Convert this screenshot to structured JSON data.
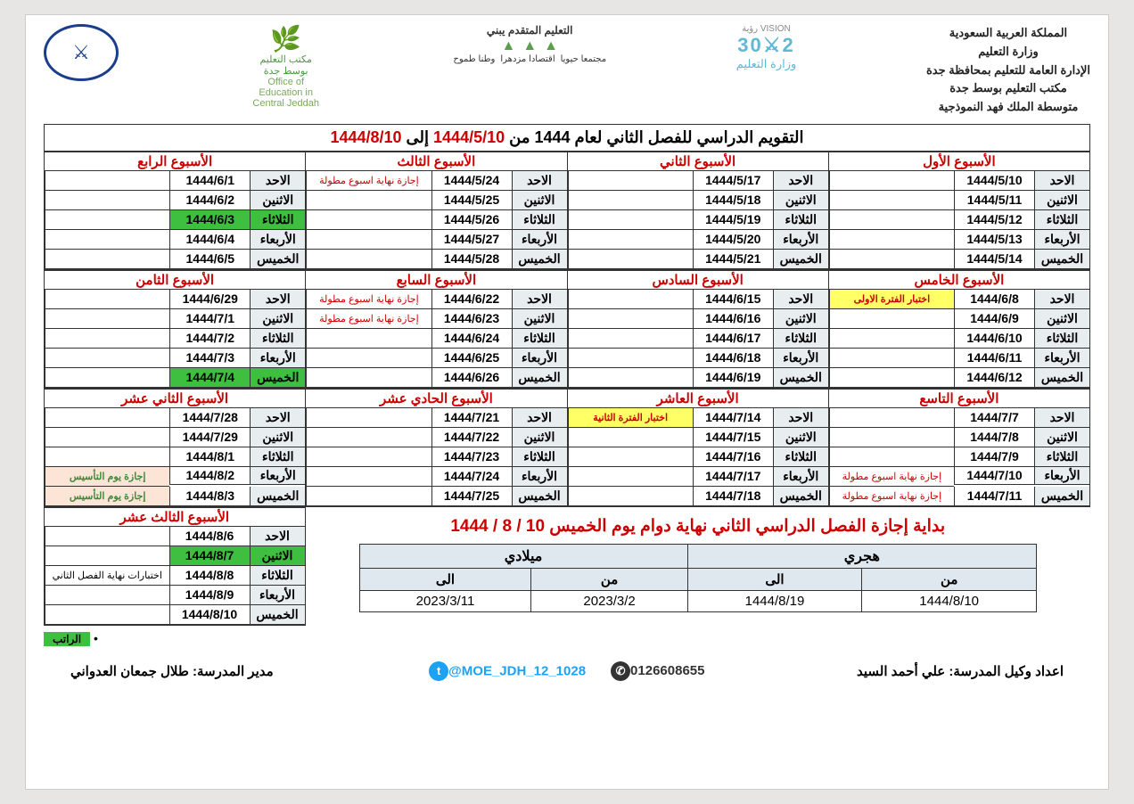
{
  "header": {
    "lines": [
      "المملكة العربية السعودية",
      "وزارة التعليم",
      "الإدارة العامة للتعليم بمحافظة جدة",
      "مكتب التعليم بوسط جدة",
      "متوسطة الملك فهد النموذجية"
    ],
    "office_ar": "مكتب التعليم بوسط جدة",
    "office_en": "Office of Education in Central Jeddah",
    "yabni": "التعليم المتقدم يبني",
    "yabni_items": [
      "مجتمعا حيويا",
      "اقتصادا مزدهرا",
      "وطنا طموح"
    ],
    "vision_top": "VISION رؤية",
    "vision_num": "2⚔30",
    "vision_sub": "وزارة التعليم"
  },
  "title": {
    "prefix": "التقويم الدراسي للفصل الثاني لعام 1444 من ",
    "from": "1444/5/10",
    "mid": " إلى ",
    "to": "1444/8/10"
  },
  "days": [
    "الاحد",
    "الاثنين",
    "الثلاثاء",
    "الأربعاء",
    "الخميس"
  ],
  "weeks": [
    {
      "title": "الأسبوع الأول",
      "rows": [
        {
          "date": "1444/5/10",
          "note": ""
        },
        {
          "date": "1444/5/11",
          "note": ""
        },
        {
          "date": "1444/5/12",
          "note": ""
        },
        {
          "date": "1444/5/13",
          "note": ""
        },
        {
          "date": "1444/5/14",
          "note": ""
        }
      ]
    },
    {
      "title": "الأسبوع الثاني",
      "rows": [
        {
          "date": "1444/5/17",
          "note": ""
        },
        {
          "date": "1444/5/18",
          "note": ""
        },
        {
          "date": "1444/5/19",
          "note": ""
        },
        {
          "date": "1444/5/20",
          "note": ""
        },
        {
          "date": "1444/5/21",
          "note": ""
        }
      ]
    },
    {
      "title": "الأسبوع الثالث",
      "rows": [
        {
          "date": "1444/5/24",
          "note": "إجازة نهاية اسبوع مطولة",
          "note_cls": "red-text"
        },
        {
          "date": "1444/5/25",
          "note": ""
        },
        {
          "date": "1444/5/26",
          "note": ""
        },
        {
          "date": "1444/5/27",
          "note": ""
        },
        {
          "date": "1444/5/28",
          "note": ""
        }
      ]
    },
    {
      "title": "الأسبوع الرابع",
      "rows": [
        {
          "date": "1444/6/1",
          "note": ""
        },
        {
          "date": "1444/6/2",
          "note": ""
        },
        {
          "date": "1444/6/3",
          "note": "",
          "green": true
        },
        {
          "date": "1444/6/4",
          "note": ""
        },
        {
          "date": "1444/6/5",
          "note": ""
        }
      ]
    },
    {
      "title": "الأسبوع الخامس",
      "rows": [
        {
          "date": "1444/6/8",
          "note": "اختبار الفترة الاولى",
          "note_cls": "yellow-note"
        },
        {
          "date": "1444/6/9",
          "note": ""
        },
        {
          "date": "1444/6/10",
          "note": ""
        },
        {
          "date": "1444/6/11",
          "note": ""
        },
        {
          "date": "1444/6/12",
          "note": ""
        }
      ]
    },
    {
      "title": "الأسبوع السادس",
      "rows": [
        {
          "date": "1444/6/15",
          "note": ""
        },
        {
          "date": "1444/6/16",
          "note": ""
        },
        {
          "date": "1444/6/17",
          "note": ""
        },
        {
          "date": "1444/6/18",
          "note": ""
        },
        {
          "date": "1444/6/19",
          "note": ""
        }
      ]
    },
    {
      "title": "الأسبوع السابع",
      "span_note": "إجازة نهاية اسبوع مطولة",
      "span_cls": "red-text",
      "span_rows": 2,
      "rows": [
        {
          "date": "1444/6/22",
          "note": ""
        },
        {
          "date": "1444/6/23",
          "note": ""
        },
        {
          "date": "1444/6/24",
          "note": ""
        },
        {
          "date": "1444/6/25",
          "note": ""
        },
        {
          "date": "1444/6/26",
          "note": ""
        }
      ]
    },
    {
      "title": "الأسبوع الثامن",
      "rows": [
        {
          "date": "1444/6/29",
          "note": ""
        },
        {
          "date": "1444/7/1",
          "note": ""
        },
        {
          "date": "1444/7/2",
          "note": ""
        },
        {
          "date": "1444/7/3",
          "note": ""
        },
        {
          "date": "1444/7/4",
          "note": "",
          "green": true
        }
      ]
    },
    {
      "title": "الأسبوع التاسع",
      "rows": [
        {
          "date": "1444/7/7",
          "note": ""
        },
        {
          "date": "1444/7/8",
          "note": ""
        },
        {
          "date": "1444/7/9",
          "note": ""
        },
        {
          "date": "1444/7/10",
          "note": "إجازة نهاية اسبوع مطولة",
          "note_cls": "red-text",
          "note_span": 2
        },
        {
          "date": "1444/7/11",
          "note": ""
        }
      ]
    },
    {
      "title": "الأسبوع العاشر",
      "rows": [
        {
          "date": "1444/7/14",
          "note": "اختبار الفترة الثانية",
          "note_cls": "yellow-note"
        },
        {
          "date": "1444/7/15",
          "note": ""
        },
        {
          "date": "1444/7/16",
          "note": ""
        },
        {
          "date": "1444/7/17",
          "note": ""
        },
        {
          "date": "1444/7/18",
          "note": ""
        }
      ]
    },
    {
      "title": "الأسبوع الحادي عشر",
      "rows": [
        {
          "date": "1444/7/21",
          "note": ""
        },
        {
          "date": "1444/7/22",
          "note": ""
        },
        {
          "date": "1444/7/23",
          "note": ""
        },
        {
          "date": "1444/7/24",
          "note": ""
        },
        {
          "date": "1444/7/25",
          "note": ""
        }
      ]
    },
    {
      "title": "الأسبوع الثاني عشر",
      "rows": [
        {
          "date": "1444/7/28",
          "note": ""
        },
        {
          "date": "1444/7/29",
          "note": ""
        },
        {
          "date": "1444/8/1",
          "note": ""
        },
        {
          "date": "1444/8/2",
          "note": "إجازة يوم التأسيس",
          "note_cls": "peach",
          "note_span": 2
        },
        {
          "date": "1444/8/3",
          "note": ""
        }
      ]
    }
  ],
  "week13": {
    "title": "الأسبوع الثالث عشر",
    "span_note": "اختبارات نهاية الفصل الثاني",
    "rows": [
      {
        "date": "1444/8/6"
      },
      {
        "date": "1444/8/7",
        "green": true
      },
      {
        "date": "1444/8/8"
      },
      {
        "date": "1444/8/9"
      },
      {
        "date": "1444/8/10"
      }
    ]
  },
  "vacation_title": "بداية إجازة الفصل الدراسي الثاني نهاية دوام يوم الخميس 10 / 8 / 1444",
  "mini": {
    "hijri": "هجري",
    "greg": "ميلادي",
    "from": "من",
    "to": "الى",
    "h_from": "1444/8/10",
    "h_to": "1444/8/19",
    "g_from": "2023/3/2",
    "g_to": "2023/3/11"
  },
  "ratib": "الراتب",
  "footer": {
    "prepared": "اعداد وكيل المدرسة: علي أحمد السيد",
    "twitter": "@MOE_JDH_12_1028",
    "phone": "0126608655",
    "principal": "مدير المدرسة: طلال جمعان العدواني"
  }
}
